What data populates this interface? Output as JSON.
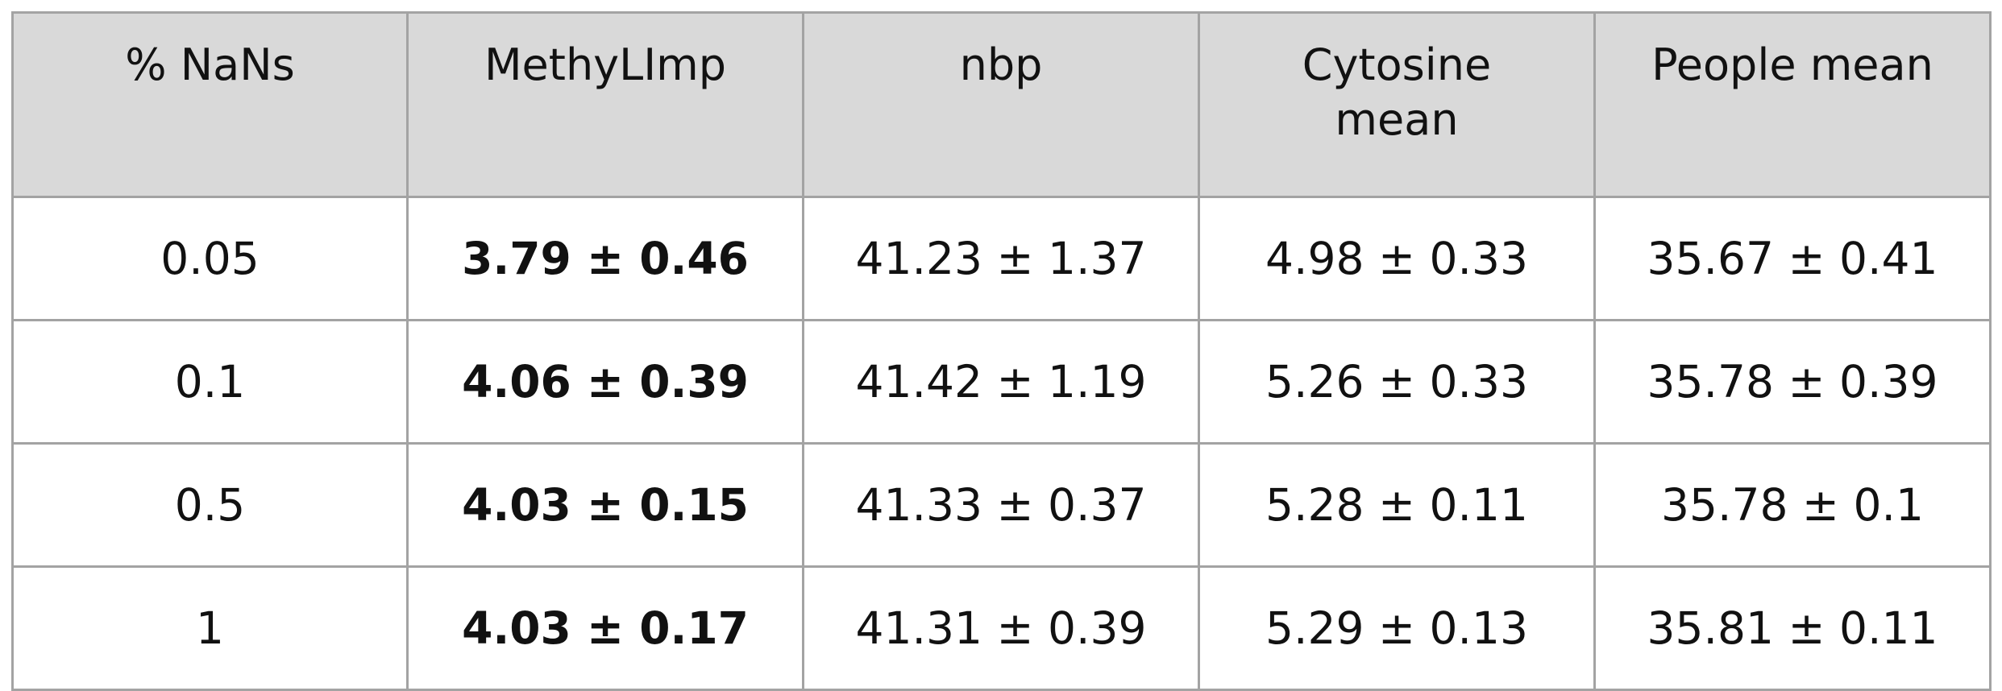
{
  "table": {
    "headers": [
      "% NaNs",
      "MethyLImp",
      "nbp",
      "Cytosine mean",
      "People mean"
    ],
    "rows": [
      [
        "0.05",
        "3.79 ± 0.46",
        "41.23 ± 1.37",
        "4.98 ± 0.33",
        "35.67 ± 0.41"
      ],
      [
        "0.1",
        "4.06 ± 0.39",
        "41.42 ± 1.19",
        "5.26 ± 0.33",
        "35.78 ± 0.39"
      ],
      [
        "0.5",
        "4.03 ± 0.15",
        "41.33 ± 0.37",
        "5.28 ± 0.11",
        "35.78 ± 0.1"
      ],
      [
        "1",
        "4.03 ± 0.17",
        "41.31 ± 0.39",
        "5.29 ± 0.13",
        "35.81 ± 0.11"
      ]
    ],
    "bold_column": 1,
    "colors": {
      "header_bg": "#d9d9d9",
      "border": "#a3a3a3",
      "text": "#111111"
    }
  }
}
